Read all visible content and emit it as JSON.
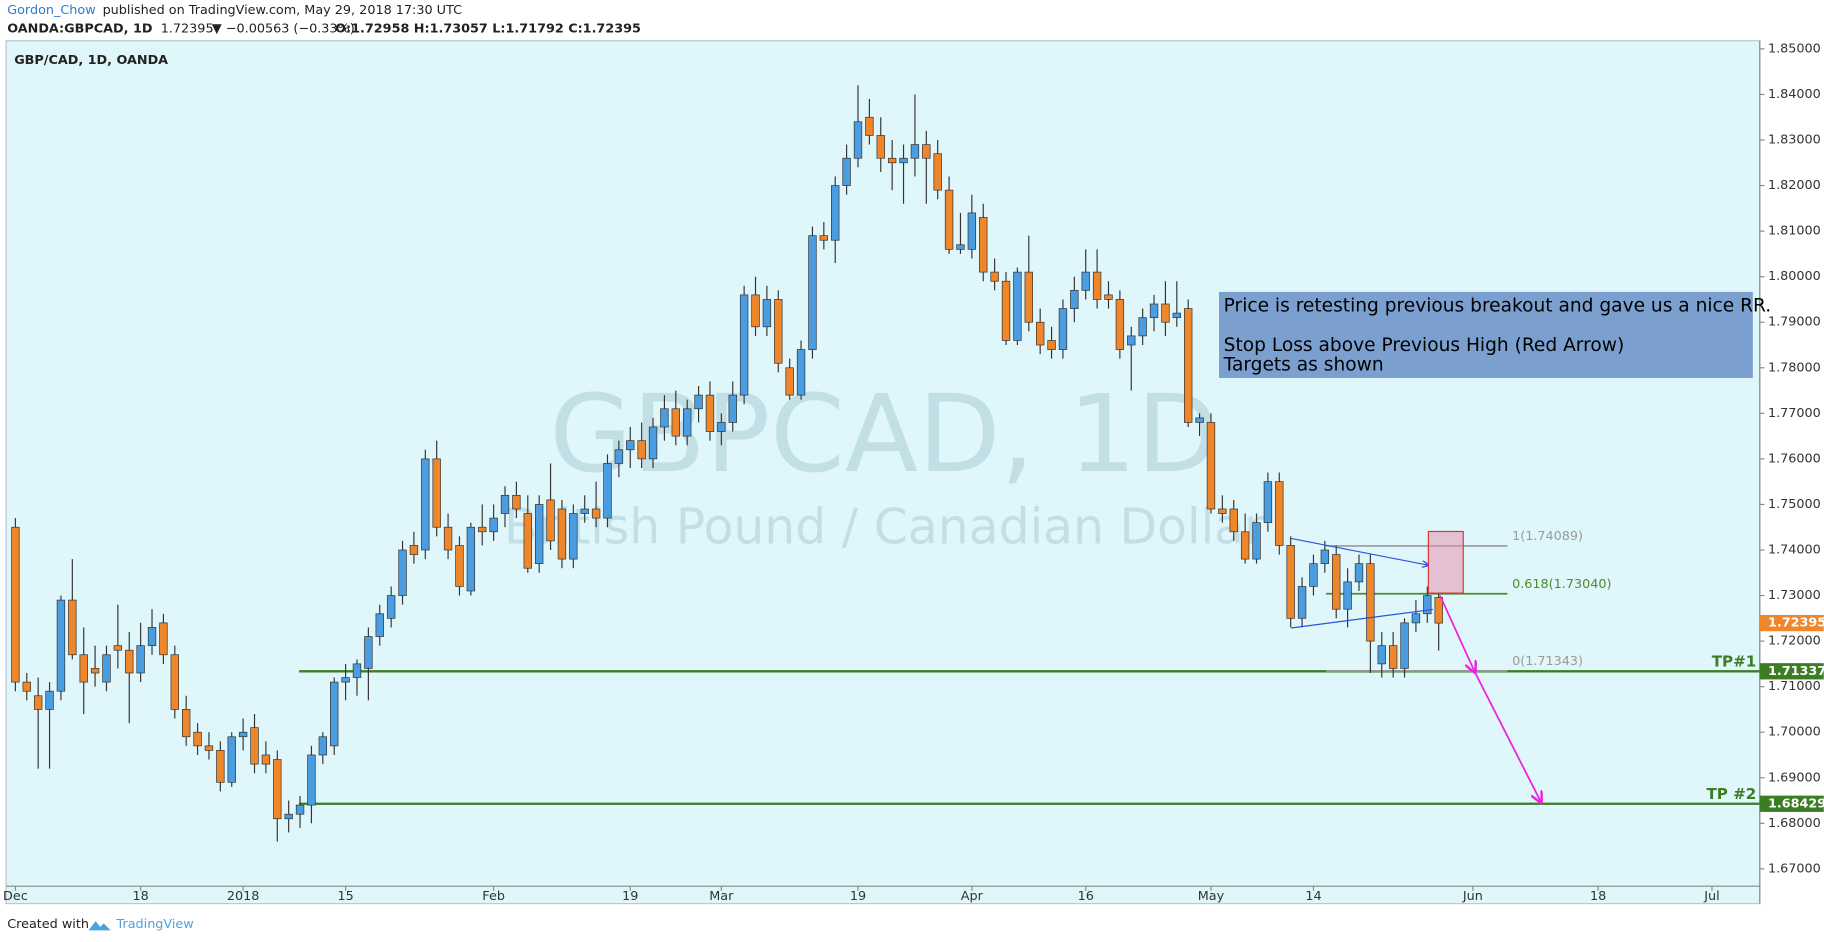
{
  "header": {
    "author": "Gordon_Chow",
    "published": "published on TradingView.com, May 29, 2018 17:30 UTC",
    "symbol": "OANDA:GBPCAD, 1D",
    "last": "1.72395",
    "change": "▼ −0.00563 (−0.33%)",
    "ohlc": "O:1.72958 H:1.73057 L:1.71792 C:1.72395"
  },
  "chart_data": {
    "type": "candlestick",
    "title": "GBP/CAD, 1D, OANDA",
    "watermark": "GBPCAD, 1D",
    "watermark_subtitle": "British Pound / Canadian Dollar",
    "colors": {
      "up": "#4a9de0",
      "down": "#f0862a",
      "wick": "#333333"
    },
    "candles": [
      [
        1.745,
        1.747,
        1.709,
        1.711
      ],
      [
        1.711,
        1.713,
        1.707,
        1.709
      ],
      [
        1.708,
        1.712,
        1.692,
        1.705
      ],
      [
        1.705,
        1.711,
        1.692,
        1.709
      ],
      [
        1.709,
        1.73,
        1.707,
        1.729
      ],
      [
        1.729,
        1.738,
        1.716,
        1.717
      ],
      [
        1.717,
        1.723,
        1.704,
        1.711
      ],
      [
        1.714,
        1.719,
        1.71,
        1.713
      ],
      [
        1.711,
        1.719,
        1.709,
        1.717
      ],
      [
        1.719,
        1.728,
        1.714,
        1.718
      ],
      [
        1.718,
        1.722,
        1.702,
        1.713
      ],
      [
        1.713,
        1.724,
        1.711,
        1.719
      ],
      [
        1.719,
        1.727,
        1.717,
        1.723
      ],
      [
        1.724,
        1.726,
        1.715,
        1.717
      ],
      [
        1.717,
        1.719,
        1.703,
        1.705
      ],
      [
        1.705,
        1.708,
        1.697,
        1.699
      ],
      [
        1.7,
        1.702,
        1.695,
        1.697
      ],
      [
        1.697,
        1.7,
        1.694,
        1.696
      ],
      [
        1.696,
        1.698,
        1.687,
        1.689
      ],
      [
        1.689,
        1.7,
        1.688,
        1.699
      ],
      [
        1.699,
        1.703,
        1.696,
        1.7
      ],
      [
        1.701,
        1.704,
        1.691,
        1.693
      ],
      [
        1.695,
        1.698,
        1.691,
        1.693
      ],
      [
        1.694,
        1.696,
        1.676,
        1.681
      ],
      [
        1.681,
        1.685,
        1.678,
        1.682
      ],
      [
        1.682,
        1.686,
        1.679,
        1.684
      ],
      [
        1.684,
        1.697,
        1.68,
        1.695
      ],
      [
        1.695,
        1.7,
        1.693,
        1.699
      ],
      [
        1.697,
        1.712,
        1.695,
        1.711
      ],
      [
        1.711,
        1.715,
        1.707,
        1.712
      ],
      [
        1.712,
        1.716,
        1.708,
        1.715
      ],
      [
        1.714,
        1.723,
        1.707,
        1.721
      ],
      [
        1.721,
        1.728,
        1.719,
        1.726
      ],
      [
        1.725,
        1.732,
        1.723,
        1.73
      ],
      [
        1.73,
        1.742,
        1.728,
        1.74
      ],
      [
        1.741,
        1.744,
        1.737,
        1.739
      ],
      [
        1.74,
        1.762,
        1.738,
        1.76
      ],
      [
        1.76,
        1.764,
        1.743,
        1.745
      ],
      [
        1.745,
        1.748,
        1.738,
        1.74
      ],
      [
        1.741,
        1.743,
        1.73,
        1.732
      ],
      [
        1.731,
        1.746,
        1.73,
        1.745
      ],
      [
        1.745,
        1.75,
        1.741,
        1.744
      ],
      [
        1.744,
        1.75,
        1.742,
        1.747
      ],
      [
        1.748,
        1.754,
        1.745,
        1.752
      ],
      [
        1.752,
        1.755,
        1.747,
        1.749
      ],
      [
        1.748,
        1.752,
        1.735,
        1.736
      ],
      [
        1.737,
        1.752,
        1.735,
        1.75
      ],
      [
        1.751,
        1.759,
        1.74,
        1.742
      ],
      [
        1.749,
        1.751,
        1.736,
        1.738
      ],
      [
        1.738,
        1.75,
        1.736,
        1.748
      ],
      [
        1.748,
        1.752,
        1.746,
        1.749
      ],
      [
        1.749,
        1.755,
        1.745,
        1.747
      ],
      [
        1.747,
        1.761,
        1.745,
        1.759
      ],
      [
        1.759,
        1.764,
        1.756,
        1.762
      ],
      [
        1.762,
        1.767,
        1.758,
        1.764
      ],
      [
        1.764,
        1.768,
        1.758,
        1.76
      ],
      [
        1.76,
        1.769,
        1.758,
        1.767
      ],
      [
        1.767,
        1.774,
        1.764,
        1.771
      ],
      [
        1.771,
        1.775,
        1.763,
        1.765
      ],
      [
        1.765,
        1.773,
        1.763,
        1.771
      ],
      [
        1.771,
        1.776,
        1.768,
        1.774
      ],
      [
        1.774,
        1.777,
        1.764,
        1.766
      ],
      [
        1.766,
        1.77,
        1.763,
        1.768
      ],
      [
        1.768,
        1.777,
        1.766,
        1.774
      ],
      [
        1.774,
        1.798,
        1.772,
        1.796
      ],
      [
        1.796,
        1.8,
        1.787,
        1.789
      ],
      [
        1.789,
        1.798,
        1.787,
        1.795
      ],
      [
        1.795,
        1.797,
        1.779,
        1.781
      ],
      [
        1.78,
        1.782,
        1.773,
        1.774
      ],
      [
        1.774,
        1.786,
        1.773,
        1.784
      ],
      [
        1.784,
        1.811,
        1.782,
        1.809
      ],
      [
        1.809,
        1.812,
        1.806,
        1.808
      ],
      [
        1.808,
        1.822,
        1.803,
        1.82
      ],
      [
        1.82,
        1.829,
        1.818,
        1.826
      ],
      [
        1.826,
        1.842,
        1.824,
        1.834
      ],
      [
        1.835,
        1.839,
        1.829,
        1.831
      ],
      [
        1.831,
        1.835,
        1.823,
        1.826
      ],
      [
        1.826,
        1.83,
        1.819,
        1.825
      ],
      [
        1.825,
        1.829,
        1.816,
        1.826
      ],
      [
        1.826,
        1.84,
        1.822,
        1.829
      ],
      [
        1.829,
        1.832,
        1.816,
        1.826
      ],
      [
        1.827,
        1.83,
        1.817,
        1.819
      ],
      [
        1.819,
        1.822,
        1.805,
        1.806
      ],
      [
        1.806,
        1.814,
        1.805,
        1.807
      ],
      [
        1.806,
        1.818,
        1.804,
        1.814
      ],
      [
        1.813,
        1.816,
        1.799,
        1.801
      ],
      [
        1.801,
        1.804,
        1.797,
        1.799
      ],
      [
        1.799,
        1.801,
        1.785,
        1.786
      ],
      [
        1.786,
        1.802,
        1.785,
        1.801
      ],
      [
        1.801,
        1.809,
        1.788,
        1.79
      ],
      [
        1.79,
        1.793,
        1.783,
        1.785
      ],
      [
        1.786,
        1.789,
        1.782,
        1.784
      ],
      [
        1.784,
        1.795,
        1.782,
        1.793
      ],
      [
        1.793,
        1.8,
        1.79,
        1.797
      ],
      [
        1.797,
        1.806,
        1.795,
        1.801
      ],
      [
        1.801,
        1.806,
        1.793,
        1.795
      ],
      [
        1.796,
        1.799,
        1.793,
        1.795
      ],
      [
        1.795,
        1.797,
        1.782,
        1.784
      ],
      [
        1.785,
        1.789,
        1.775,
        1.787
      ],
      [
        1.787,
        1.793,
        1.785,
        1.791
      ],
      [
        1.791,
        1.796,
        1.788,
        1.794
      ],
      [
        1.794,
        1.799,
        1.787,
        1.79
      ],
      [
        1.791,
        1.799,
        1.789,
        1.792
      ],
      [
        1.793,
        1.795,
        1.767,
        1.768
      ],
      [
        1.768,
        1.77,
        1.765,
        1.769
      ],
      [
        1.768,
        1.77,
        1.748,
        1.749
      ],
      [
        1.749,
        1.752,
        1.746,
        1.748
      ],
      [
        1.749,
        1.751,
        1.742,
        1.744
      ],
      [
        1.744,
        1.748,
        1.737,
        1.738
      ],
      [
        1.738,
        1.748,
        1.737,
        1.746
      ],
      [
        1.746,
        1.757,
        1.744,
        1.755
      ],
      [
        1.755,
        1.757,
        1.739,
        1.741
      ],
      [
        1.741,
        1.743,
        1.723,
        1.725
      ],
      [
        1.725,
        1.734,
        1.723,
        1.732
      ],
      [
        1.732,
        1.739,
        1.73,
        1.737
      ],
      [
        1.737,
        1.742,
        1.735,
        1.74
      ],
      [
        1.739,
        1.741,
        1.725,
        1.727
      ],
      [
        1.727,
        1.736,
        1.723,
        1.733
      ],
      [
        1.733,
        1.739,
        1.731,
        1.737
      ],
      [
        1.737,
        1.739,
        1.713,
        1.72
      ],
      [
        1.715,
        1.722,
        1.712,
        1.719
      ],
      [
        1.719,
        1.722,
        1.712,
        1.714
      ],
      [
        1.714,
        1.725,
        1.712,
        1.724
      ],
      [
        1.724,
        1.729,
        1.722,
        1.726
      ],
      [
        1.726,
        1.732,
        1.724,
        1.73
      ],
      [
        1.72958,
        1.73057,
        1.71792,
        1.72395
      ]
    ],
    "xlim": [
      -0.82,
      153.2
    ],
    "xticks": [
      {
        "value": 0,
        "label": "Dec"
      },
      {
        "value": 11,
        "label": "18"
      },
      {
        "value": 20,
        "label": "2018"
      },
      {
        "value": 29,
        "label": "15"
      },
      {
        "value": 42,
        "label": "Feb"
      },
      {
        "value": 54,
        "label": "19"
      },
      {
        "value": 62,
        "label": "Mar"
      },
      {
        "value": 74,
        "label": "19"
      },
      {
        "value": 84,
        "label": "Apr"
      },
      {
        "value": 94,
        "label": "16"
      },
      {
        "value": 105,
        "label": "May"
      },
      {
        "value": 114,
        "label": "14"
      },
      {
        "value": 128,
        "label": "Jun"
      },
      {
        "value": 139,
        "label": "18"
      },
      {
        "value": 149,
        "label": "Jul"
      }
    ],
    "ylim": [
      1.6662,
      1.8518
    ],
    "yticks": [
      {
        "value": 1.67,
        "label": "1.67000"
      },
      {
        "value": 1.68,
        "label": "1.68000"
      },
      {
        "value": 1.69,
        "label": "1.69000"
      },
      {
        "value": 1.7,
        "label": "1.70000"
      },
      {
        "value": 1.71,
        "label": "1.71000"
      },
      {
        "value": 1.72,
        "label": "1.72000"
      },
      {
        "value": 1.73,
        "label": "1.73000"
      },
      {
        "value": 1.74,
        "label": "1.74000"
      },
      {
        "value": 1.75,
        "label": "1.75000"
      },
      {
        "value": 1.76,
        "label": "1.76000"
      },
      {
        "value": 1.77,
        "label": "1.77000"
      },
      {
        "value": 1.78,
        "label": "1.78000"
      },
      {
        "value": 1.79,
        "label": "1.79000"
      },
      {
        "value": 1.8,
        "label": "1.80000"
      },
      {
        "value": 1.81,
        "label": "1.81000"
      },
      {
        "value": 1.82,
        "label": "1.82000"
      },
      {
        "value": 1.83,
        "label": "1.83000"
      },
      {
        "value": 1.84,
        "label": "1.84000"
      },
      {
        "value": 1.85,
        "label": "1.85000"
      }
    ],
    "grid": false,
    "last_price": 1.72395,
    "levels": [
      {
        "name": "TP#1",
        "value": 1.71337,
        "color": "#3a7d22"
      },
      {
        "name": "TP #2",
        "value": 1.68429,
        "color": "#3a7d22"
      }
    ],
    "fib": [
      {
        "value": 1.74089,
        "label": "1(1.74089)",
        "color": "#9a9a9a"
      },
      {
        "value": 1.7304,
        "label": "0.618(1.73040)",
        "color": "#4c8c2b"
      },
      {
        "value": 1.71343,
        "label": "0(1.71343)",
        "color": "#9a9a9a"
      }
    ],
    "annotation": {
      "line1": "Price is retesting previous breakout and gave us a nice RR.",
      "line2": "Stop Loss above Previous High (Red Arrow)",
      "line3": "Targets as shown"
    }
  },
  "footer": {
    "created": "Created with",
    "brand": "TradingView"
  }
}
